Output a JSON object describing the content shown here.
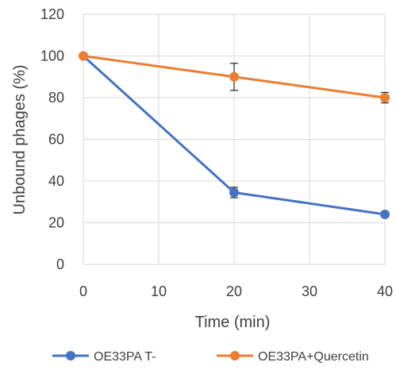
{
  "chart_data": {
    "type": "line",
    "title": "",
    "xlabel": "Time (min)",
    "ylabel": "Unbound phages (%)",
    "xlim": [
      0,
      40
    ],
    "ylim": [
      0,
      120
    ],
    "x_ticks": [
      0,
      10,
      20,
      30,
      40
    ],
    "y_ticks": [
      0,
      20,
      40,
      60,
      80,
      100,
      120
    ],
    "grid": true,
    "legend_position": "bottom",
    "series": [
      {
        "name": "OE33PA T-",
        "color": "#4472C4",
        "points": [
          {
            "x": 0,
            "y": 100,
            "err": 0
          },
          {
            "x": 20,
            "y": 34.5,
            "err": 2.5
          },
          {
            "x": 40,
            "y": 24,
            "err": 0.8
          }
        ]
      },
      {
        "name": "OE33PA+Quercetin",
        "color": "#ED7D31",
        "points": [
          {
            "x": 0,
            "y": 100,
            "err": 0
          },
          {
            "x": 20,
            "y": 90,
            "err": 6.5
          },
          {
            "x": 40,
            "y": 80,
            "err": 2.5
          }
        ]
      }
    ]
  }
}
